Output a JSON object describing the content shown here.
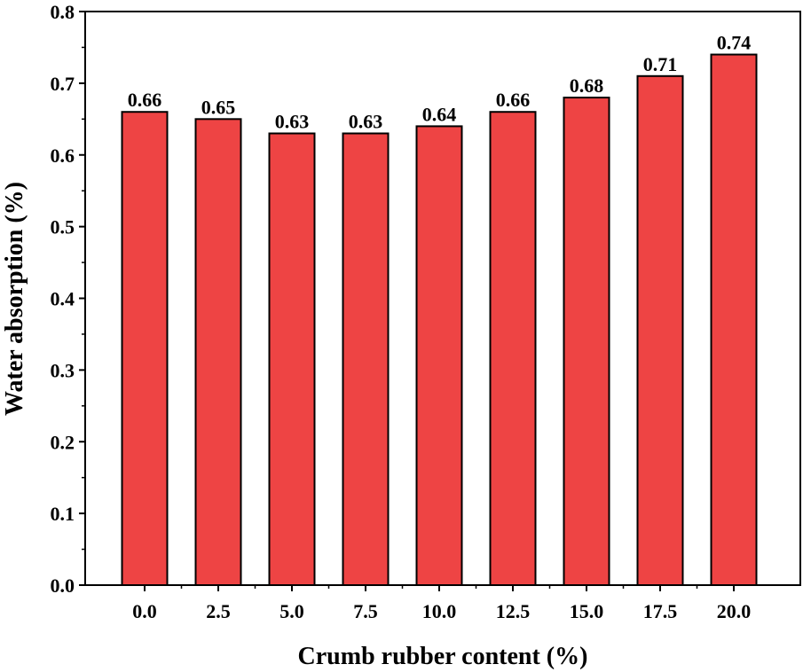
{
  "chart_data": {
    "type": "bar",
    "title": "",
    "xlabel": "Crumb rubber content (%)",
    "ylabel": "Water absorption (%)",
    "categories": [
      "0.0",
      "2.5",
      "5.0",
      "7.5",
      "10.0",
      "12.5",
      "15.0",
      "17.5",
      "20.0"
    ],
    "values": [
      0.66,
      0.65,
      0.63,
      0.63,
      0.64,
      0.66,
      0.68,
      0.71,
      0.74
    ],
    "data_labels": [
      "0.66",
      "0.65",
      "0.63",
      "0.63",
      "0.64",
      "0.66",
      "0.68",
      "0.71",
      "0.74"
    ],
    "ylim": [
      0,
      0.8
    ],
    "yticks": [
      "0.0",
      "0.1",
      "0.2",
      "0.3",
      "0.4",
      "0.5",
      "0.6",
      "0.7",
      "0.8"
    ],
    "bar_color": "#ee4444",
    "grid": false
  }
}
